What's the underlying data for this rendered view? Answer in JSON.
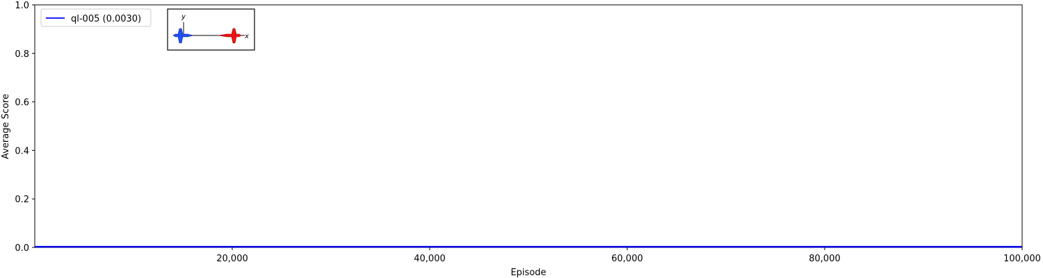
{
  "chart_data": {
    "type": "line",
    "title": "",
    "xlabel": "Episode",
    "ylabel": "Average Score",
    "xlim": [
      0,
      100000
    ],
    "ylim": [
      0,
      1.0
    ],
    "xticks": [
      20000,
      40000,
      60000,
      80000,
      100000
    ],
    "xtick_labels": [
      "20,000",
      "40,000",
      "60,000",
      "80,000",
      "100,000"
    ],
    "yticks": [
      0.0,
      0.2,
      0.4,
      0.6,
      0.8,
      1.0
    ],
    "ytick_labels": [
      "0.0",
      "0.2",
      "0.4",
      "0.6",
      "0.8",
      "1.0"
    ],
    "grid": false,
    "legend_position": "top-left",
    "series": [
      {
        "name": "ql-005 (0.0030)",
        "color": "#0000ff",
        "x": [
          0,
          10000,
          20000,
          30000,
          40000,
          50000,
          60000,
          70000,
          80000,
          90000,
          100000
        ],
        "y": [
          0.003,
          0.003,
          0.003,
          0.003,
          0.003,
          0.003,
          0.003,
          0.003,
          0.003,
          0.003,
          0.003
        ]
      }
    ],
    "inset": {
      "axis_x_label": "x",
      "axis_y_label": "y",
      "left_aircraft_color": "#1f4fff",
      "right_aircraft_color": "#ee1111"
    }
  }
}
